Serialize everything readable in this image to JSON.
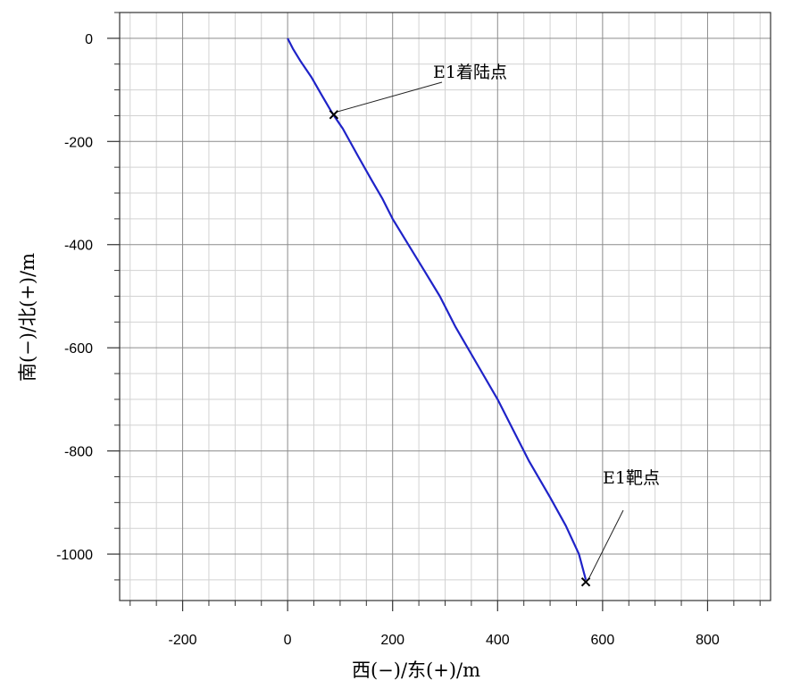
{
  "chart_data": {
    "type": "line",
    "xlabel": "西(−)/东(+)/m",
    "ylabel": "南(−)/北(+)/m",
    "xlim": [
      -320,
      920
    ],
    "ylim": [
      -1090,
      50
    ],
    "x_ticks": [
      -200,
      0,
      200,
      400,
      600,
      800
    ],
    "y_ticks": [
      0,
      -200,
      -400,
      -600,
      -800,
      -1000
    ],
    "x_minor_step": 50,
    "y_minor_step": 50,
    "grid": true,
    "series": [
      {
        "color": "#1f23c8",
        "points": [
          [
            0,
            0
          ],
          [
            10,
            -20
          ],
          [
            25,
            -45
          ],
          [
            45,
            -75
          ],
          [
            65,
            -110
          ],
          [
            85,
            -145
          ],
          [
            105,
            -175
          ],
          [
            135,
            -230
          ],
          [
            160,
            -275
          ],
          [
            180,
            -310
          ],
          [
            200,
            -350
          ],
          [
            230,
            -400
          ],
          [
            260,
            -450
          ],
          [
            290,
            -500
          ],
          [
            320,
            -560
          ],
          [
            360,
            -630
          ],
          [
            400,
            -700
          ],
          [
            430,
            -760
          ],
          [
            460,
            -820
          ],
          [
            500,
            -890
          ],
          [
            530,
            -945
          ],
          [
            555,
            -1000
          ],
          [
            568,
            -1050
          ]
        ]
      }
    ],
    "annotations": [
      {
        "text": "E1着陆点",
        "x": 88,
        "y": -148,
        "marker": "x"
      },
      {
        "text": "E1靶点",
        "x": 568,
        "y": -1054,
        "marker": "x"
      }
    ]
  }
}
